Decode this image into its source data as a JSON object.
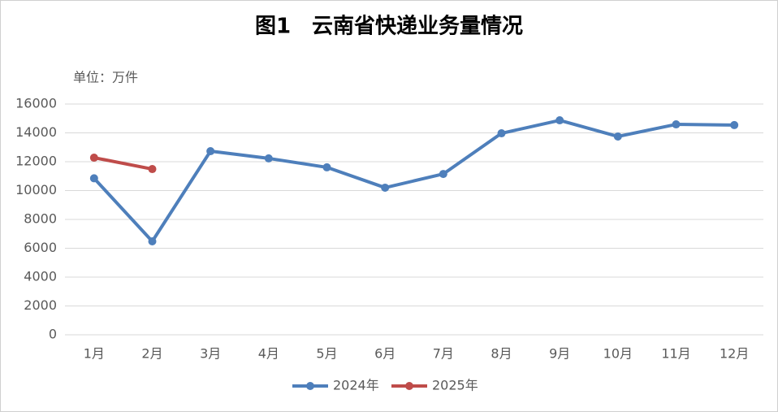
{
  "chart_data": {
    "type": "line",
    "title": "图1　云南省快递业务量情况",
    "unit_label": "单位：万件",
    "categories": [
      "1月",
      "2月",
      "3月",
      "4月",
      "5月",
      "6月",
      "7月",
      "8月",
      "9月",
      "10月",
      "11月",
      "12月"
    ],
    "series": [
      {
        "name": "2024年",
        "color": "#4e7fbb",
        "values": [
          10850,
          6480,
          12730,
          12230,
          11610,
          10200,
          11150,
          13970,
          14870,
          13750,
          14590,
          14540
        ]
      },
      {
        "name": "2025年",
        "color": "#bf4c4a",
        "values": [
          12280,
          11490,
          null,
          null,
          null,
          null,
          null,
          null,
          null,
          null,
          null,
          null
        ]
      }
    ],
    "ylim": [
      0,
      16000
    ],
    "yticks": [
      0,
      2000,
      4000,
      6000,
      8000,
      10000,
      12000,
      14000,
      16000
    ],
    "grid": true,
    "legend": "bottom"
  }
}
